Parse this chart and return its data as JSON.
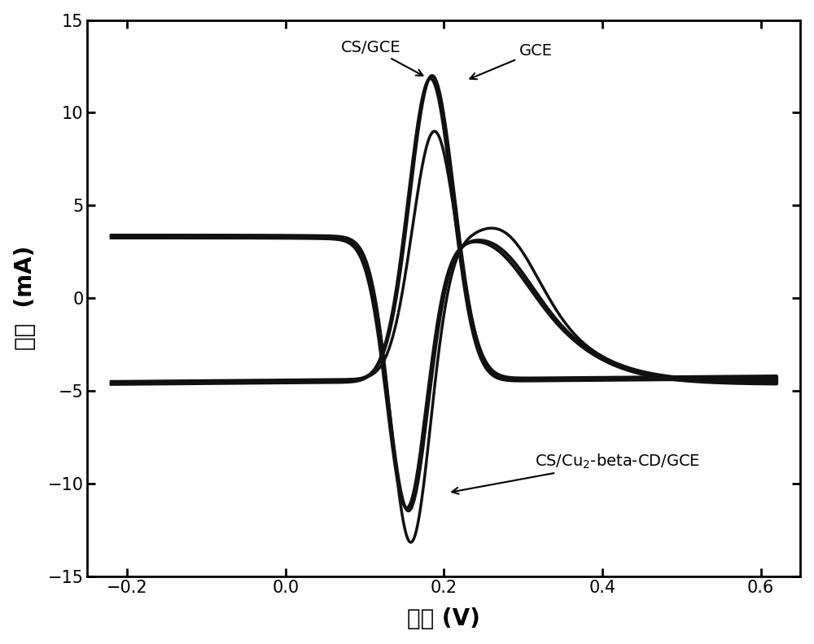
{
  "xlabel": "电压 (V)",
  "ylabel": "电流  (mA)",
  "xlim": [
    -0.25,
    0.65
  ],
  "ylim": [
    -15,
    15
  ],
  "xticks": [
    -0.2,
    0.0,
    0.2,
    0.4,
    0.6
  ],
  "yticks": [
    -15,
    -10,
    -5,
    0,
    5,
    10,
    15
  ],
  "line_color": "#111111",
  "background_color": "#ffffff"
}
